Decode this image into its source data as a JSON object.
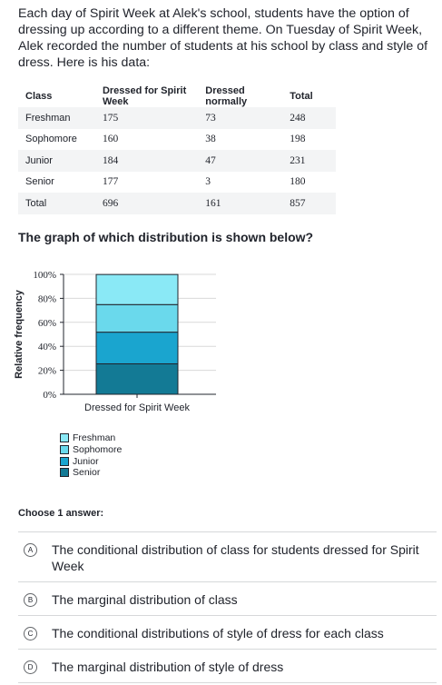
{
  "intro": "Each day of Spirit Week at Alek's school, students have the option of dressing up according to a different theme. On Tuesday of Spirit Week, Alek recorded the number of students at his school by class and style of dress. Here is his data:",
  "table": {
    "headers": [
      "Class",
      "Dressed for Spirit Week",
      "Dressed normally",
      "Total"
    ],
    "rows": [
      [
        "Freshman",
        "175",
        "73",
        "248"
      ],
      [
        "Sophomore",
        "160",
        "38",
        "198"
      ],
      [
        "Junior",
        "184",
        "47",
        "231"
      ],
      [
        "Senior",
        "177",
        "3",
        "180"
      ],
      [
        "Total",
        "696",
        "161",
        "857"
      ]
    ]
  },
  "question": "The graph of which distribution is shown below?",
  "chart_data": {
    "type": "bar",
    "stacked": true,
    "ylabel": "Relative frequency",
    "yticks": [
      "0%",
      "20%",
      "40%",
      "60%",
      "80%",
      "100%"
    ],
    "ylim": [
      0,
      100
    ],
    "categories": [
      "Dressed for Spirit Week"
    ],
    "series": [
      {
        "name": "Freshman",
        "values": [
          25.1
        ],
        "color": "#8ae9f6"
      },
      {
        "name": "Sophomore",
        "values": [
          23.0
        ],
        "color": "#6ad9ec"
      },
      {
        "name": "Junior",
        "values": [
          26.4
        ],
        "color": "#1aa5cf"
      },
      {
        "name": "Senior",
        "values": [
          25.4
        ],
        "color": "#137a95"
      }
    ],
    "legend_order": [
      "Freshman",
      "Sophomore",
      "Junior",
      "Senior"
    ],
    "grid": true
  },
  "choose_label": "Choose 1 answer:",
  "choices": [
    {
      "letter": "A",
      "text": "The conditional distribution of class for students dressed for Spirit Week"
    },
    {
      "letter": "B",
      "text": "The marginal distribution of class"
    },
    {
      "letter": "C",
      "text": "The conditional distributions of style of dress for each class"
    },
    {
      "letter": "D",
      "text": "The marginal distribution of style of dress"
    }
  ]
}
